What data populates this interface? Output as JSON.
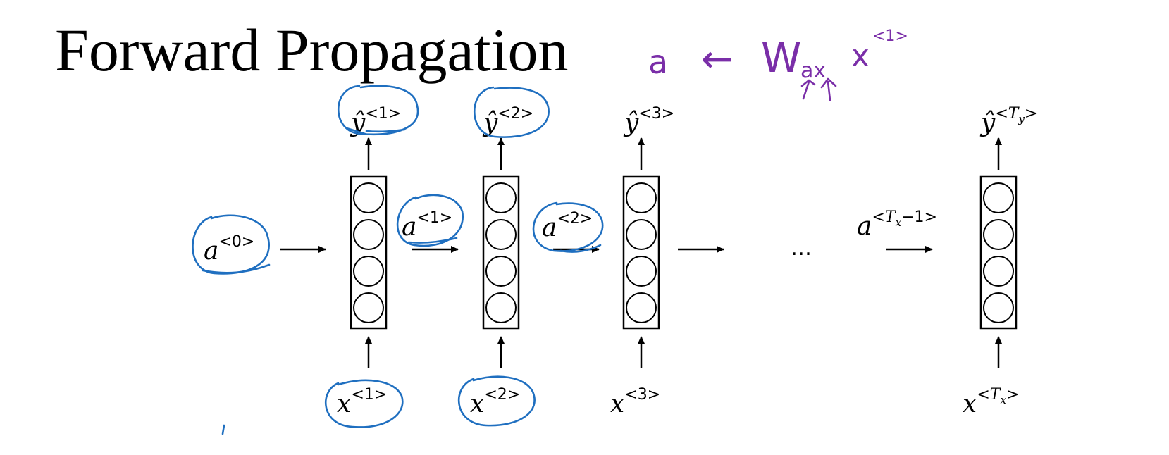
{
  "title": "Forward Propagation",
  "annotation": {
    "a": "a",
    "arrow": "←",
    "W": "W",
    "sub": "ax",
    "x": "x",
    "sup": "<1>"
  },
  "labels": {
    "a0": {
      "base": "a",
      "sup": "<0>"
    },
    "a1": {
      "base": "a",
      "sup": "<1>"
    },
    "a2": {
      "base": "a",
      "sup": "<2>"
    },
    "aT": {
      "base": "a",
      "sup_pre": "<",
      "T": "T",
      "Tsub": "x",
      "sup_post": "−1>"
    },
    "y1": {
      "base": "ŷ",
      "sup": "<1>"
    },
    "y2": {
      "base": "ŷ",
      "sup": "<2>"
    },
    "y3": {
      "base": "ŷ",
      "sup": "<3>"
    },
    "yT": {
      "base": "ŷ",
      "sup_pre": "<",
      "T": "T",
      "Tsub": "y",
      "sup_post": ">"
    },
    "x1": {
      "base": "x",
      "sup": "<1>"
    },
    "x2": {
      "base": "x",
      "sup": "<2>"
    },
    "x3": {
      "base": "x",
      "sup": "<3>"
    },
    "xT": {
      "base": "x",
      "sup_pre": "<",
      "T": "T",
      "Tsub": "x",
      "sup_post": ">"
    }
  },
  "ellipsis": "…",
  "colors": {
    "ink_blue": "#1f6fc0",
    "ink_purple": "#7a2ea8",
    "line": "#000000"
  }
}
